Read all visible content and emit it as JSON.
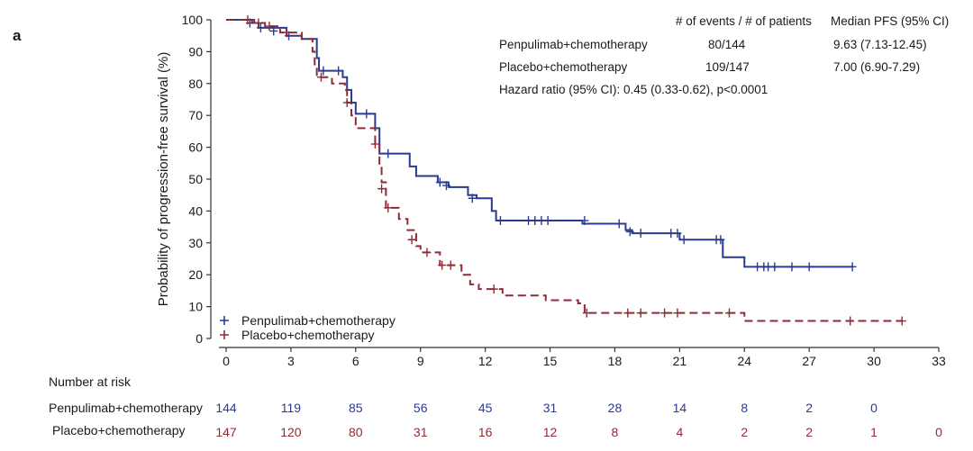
{
  "panel_label": "a",
  "chart_data": {
    "type": "line",
    "chart_kind": "kaplan-meier",
    "xlabel": "Time (months)",
    "ylabel": "Probability of progression-free survival (%)",
    "xlim": [
      0,
      33
    ],
    "ylim": [
      0,
      100
    ],
    "xticks": [
      0,
      3,
      6,
      9,
      12,
      15,
      18,
      21,
      24,
      27,
      30,
      33
    ],
    "yticks": [
      0,
      10,
      20,
      30,
      40,
      50,
      60,
      70,
      80,
      90,
      100
    ],
    "legend_position": "bottom-left",
    "series": [
      {
        "name": "Penpulimab+chemotherapy",
        "color": "#2b3a8f",
        "dash": "solid",
        "steps": [
          [
            0,
            100
          ],
          [
            1.2,
            99
          ],
          [
            1.5,
            97.5
          ],
          [
            2.8,
            95
          ],
          [
            3.5,
            94
          ],
          [
            4.2,
            88
          ],
          [
            4.3,
            84
          ],
          [
            5.4,
            82
          ],
          [
            5.6,
            78
          ],
          [
            5.8,
            74
          ],
          [
            6.0,
            70.5
          ],
          [
            6.9,
            66
          ],
          [
            7.1,
            58
          ],
          [
            8.5,
            54
          ],
          [
            8.8,
            51
          ],
          [
            9.8,
            49
          ],
          [
            10.3,
            47.5
          ],
          [
            11.2,
            45
          ],
          [
            11.6,
            44
          ],
          [
            12.3,
            40
          ],
          [
            12.5,
            37
          ],
          [
            16.5,
            36
          ],
          [
            18.5,
            34
          ],
          [
            18.8,
            33
          ],
          [
            21.0,
            31
          ],
          [
            23.0,
            25.5
          ],
          [
            24.0,
            22.5
          ],
          [
            29.0,
            22.5
          ]
        ],
        "censored": [
          [
            1.1,
            99
          ],
          [
            1.6,
            97.5
          ],
          [
            2.2,
            96.5
          ],
          [
            2.9,
            95
          ],
          [
            4.5,
            84
          ],
          [
            5.2,
            84
          ],
          [
            6.5,
            70.5
          ],
          [
            7.5,
            58
          ],
          [
            9.9,
            49
          ],
          [
            10.2,
            48
          ],
          [
            11.4,
            44
          ],
          [
            12.7,
            37
          ],
          [
            14.0,
            37
          ],
          [
            14.3,
            37
          ],
          [
            14.6,
            37
          ],
          [
            14.9,
            37
          ],
          [
            16.6,
            37
          ],
          [
            18.2,
            36
          ],
          [
            18.7,
            33.5
          ],
          [
            19.2,
            33
          ],
          [
            20.6,
            33
          ],
          [
            20.9,
            33
          ],
          [
            21.2,
            31
          ],
          [
            22.7,
            31
          ],
          [
            22.9,
            31
          ],
          [
            24.6,
            22.5
          ],
          [
            24.9,
            22.5
          ],
          [
            25.1,
            22.5
          ],
          [
            25.4,
            22.5
          ],
          [
            26.2,
            22.5
          ],
          [
            27.0,
            22.5
          ],
          [
            29.0,
            22.5
          ]
        ]
      },
      {
        "name": "Placebo+chemotherapy",
        "color": "#8f2b35",
        "dash": "dashed",
        "steps": [
          [
            0,
            100
          ],
          [
            1.3,
            99
          ],
          [
            1.8,
            98
          ],
          [
            2.5,
            96
          ],
          [
            3.5,
            94
          ],
          [
            4.0,
            90
          ],
          [
            4.1,
            86
          ],
          [
            4.2,
            82
          ],
          [
            4.9,
            80
          ],
          [
            5.5,
            78
          ],
          [
            5.6,
            74
          ],
          [
            5.8,
            70
          ],
          [
            6.0,
            66
          ],
          [
            6.9,
            61
          ],
          [
            7.1,
            54
          ],
          [
            7.2,
            49
          ],
          [
            7.4,
            41
          ],
          [
            8.0,
            37.5
          ],
          [
            8.4,
            34
          ],
          [
            8.8,
            29
          ],
          [
            9.0,
            27
          ],
          [
            9.9,
            23
          ],
          [
            10.9,
            20
          ],
          [
            11.3,
            17
          ],
          [
            11.7,
            15.5
          ],
          [
            12.8,
            13.5
          ],
          [
            14.8,
            12
          ],
          [
            16.3,
            11
          ],
          [
            16.6,
            8
          ],
          [
            24.0,
            5.5
          ],
          [
            31.3,
            5.5
          ]
        ],
        "censored": [
          [
            1.0,
            100
          ],
          [
            1.5,
            99
          ],
          [
            2.0,
            98
          ],
          [
            2.8,
            96
          ],
          [
            4.4,
            82
          ],
          [
            5.6,
            74
          ],
          [
            6.9,
            61
          ],
          [
            7.2,
            47
          ],
          [
            7.5,
            41
          ],
          [
            8.6,
            31
          ],
          [
            9.3,
            27
          ],
          [
            10.0,
            23
          ],
          [
            10.4,
            23
          ],
          [
            12.4,
            15.5
          ],
          [
            16.7,
            8
          ],
          [
            18.6,
            8
          ],
          [
            19.2,
            8
          ],
          [
            20.3,
            8
          ],
          [
            20.9,
            8
          ],
          [
            23.3,
            8
          ],
          [
            28.9,
            5.5
          ],
          [
            31.3,
            5.5
          ]
        ]
      }
    ]
  },
  "results_table": {
    "col_events_header": "# of events / # of patients",
    "col_pfs_header": "Median PFS (95% CI)",
    "rows": [
      {
        "label": "Penpulimab+chemotherapy",
        "events": "80/144",
        "pfs": "9.63 (7.13-12.45)"
      },
      {
        "label": "Placebo+chemotherapy",
        "events": "109/147",
        "pfs": "7.00 (6.90-7.29)"
      }
    ],
    "hazard_ratio": "Hazard ratio (95% CI): 0.45 (0.33-0.62), p<0.0001"
  },
  "risk_table": {
    "title": "Number at risk",
    "rows": [
      {
        "label": "Penpulimab+chemotherapy",
        "color": "#2b3a8f",
        "values": [
          "144",
          "119",
          "85",
          "56",
          "45",
          "31",
          "28",
          "14",
          "8",
          "2",
          "0"
        ]
      },
      {
        "label": "Placebo+chemotherapy",
        "color": "#8f2b35",
        "values": [
          "147",
          "120",
          "80",
          "31",
          "16",
          "12",
          "8",
          "4",
          "2",
          "2",
          "1",
          "0"
        ]
      }
    ]
  }
}
